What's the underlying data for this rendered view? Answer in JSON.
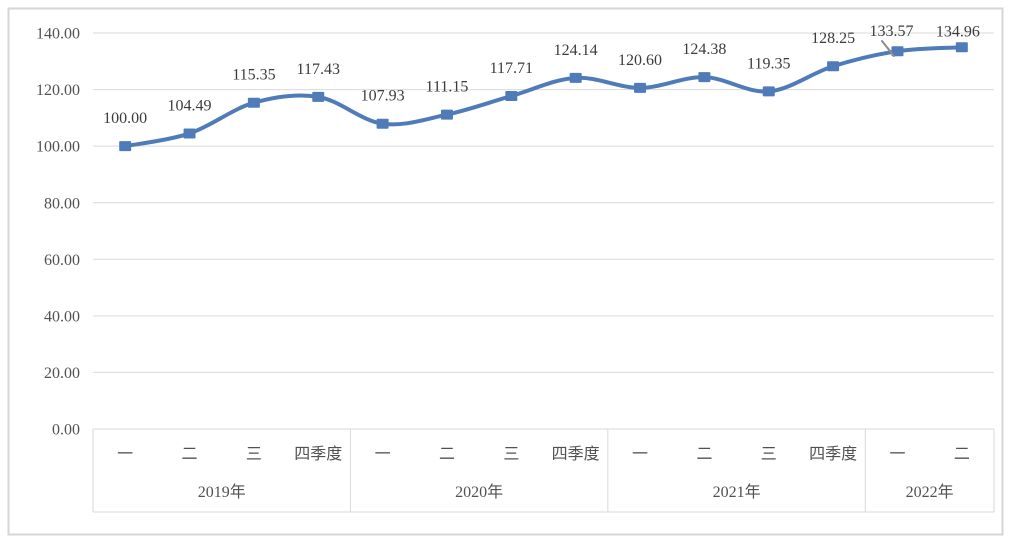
{
  "chart_data": {
    "type": "line",
    "title": "",
    "smooth": true,
    "legend": "none",
    "grid": true,
    "values": [
      100.0,
      104.49,
      115.35,
      117.43,
      107.93,
      111.15,
      117.71,
      124.14,
      120.6,
      124.38,
      119.35,
      128.25,
      133.57,
      134.96
    ],
    "point_labels": [
      "100.00",
      "104.49",
      "115.35",
      "117.43",
      "107.93",
      "111.15",
      "117.71",
      "124.14",
      "120.60",
      "124.38",
      "119.35",
      "128.25",
      "133.57",
      "134.96"
    ],
    "categories": [
      "一",
      "二",
      "三",
      "四季度",
      "一",
      "二",
      "三",
      "四季度",
      "一",
      "二",
      "三",
      "四季度",
      "一",
      "二"
    ],
    "year_groups": [
      {
        "label": "2019年",
        "span": 4
      },
      {
        "label": "2020年",
        "span": 4
      },
      {
        "label": "2021年",
        "span": 4
      },
      {
        "label": "2022年",
        "span": 2
      }
    ],
    "y_ticks": [
      "0.00",
      "20.00",
      "40.00",
      "60.00",
      "80.00",
      "100.00",
      "120.00",
      "140.00"
    ],
    "ylim": [
      0,
      140
    ],
    "xlabel": "",
    "ylabel": "",
    "colors": {
      "line": "#4F7CB9",
      "marker": "#4F7CB9",
      "grid": "#D9D9D9",
      "axis_table_border": "#D9D9D9",
      "chart_border": "#D6D6D6",
      "axis_text": "#515151",
      "label_text": "#3B3B3B",
      "background": "#FFFFFF",
      "cursor": "#8C8C8C"
    },
    "label_offsets": {
      "default": {
        "dx": 0,
        "dy": -23
      },
      "12": {
        "dx": -6,
        "dy": -15
      },
      "13": {
        "dx": -4,
        "dy": -11
      }
    },
    "cursor_icon": {
      "name": "mouse-cursor",
      "x1": 882,
      "y1": 41,
      "x2": 894,
      "y2": 56
    }
  }
}
